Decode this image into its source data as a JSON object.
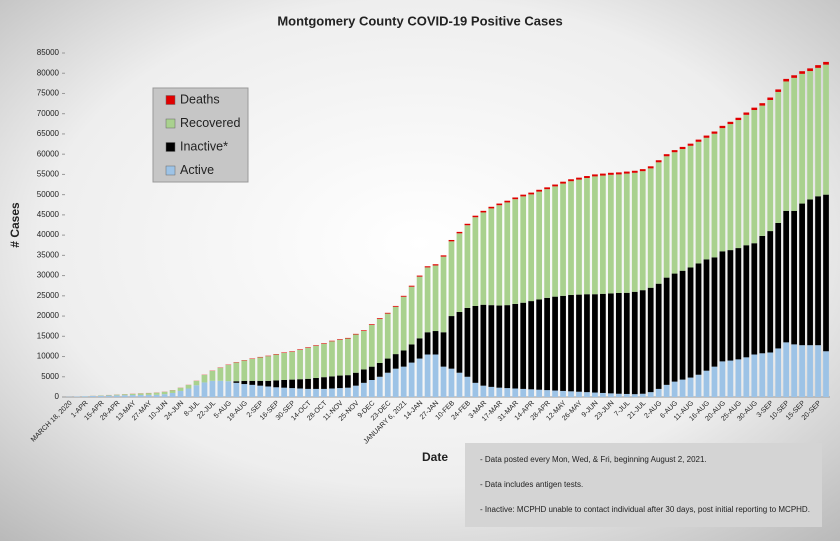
{
  "chart_data": {
    "type": "bar",
    "stacked": true,
    "title": "Montgomery County COVID-19 Positive Cases",
    "y_label": "# Cases",
    "x_label": "Date",
    "legend": "upper left",
    "categories": [
      "MARCH 18, 2020",
      null,
      "1-APR",
      null,
      "15-APR",
      null,
      "29-APR",
      null,
      "13-MAY",
      null,
      "27-MAY",
      null,
      "10-JUN",
      null,
      "24-JUN",
      null,
      "8-JUL",
      null,
      "22-JUL",
      null,
      "5-AUG",
      null,
      "19-AUG",
      null,
      "2-SEP",
      null,
      "16-SEP",
      null,
      "30-SEP",
      null,
      "14-OCT",
      null,
      "28-OCT",
      null,
      "11-NOV",
      null,
      "25-NOV",
      null,
      "9-DEC",
      null,
      "23-DEC",
      null,
      "JANUARY 6, 2021",
      null,
      "14-JAN",
      null,
      "27-JAN",
      null,
      "10-FEB",
      null,
      "24-FEB",
      null,
      "3-MAR",
      null,
      "17-MAR",
      null,
      "31-MAR",
      null,
      "14-APR",
      null,
      "28-APR",
      null,
      "12-MAY",
      null,
      "26-MAY",
      null,
      "9-JUN",
      null,
      "23-JUN",
      null,
      "7-JUL",
      null,
      "21-JUL",
      null,
      "2-AUG",
      null,
      "6-AUG",
      null,
      "11-AUG",
      null,
      "16-AUG",
      null,
      "20-AUG",
      null,
      "25-AUG",
      null,
      "30-AUG",
      null,
      "3-SEP",
      null,
      "10-SEP",
      null,
      "15-SEP",
      null,
      "20-SEP",
      null
    ],
    "series": [
      {
        "name": "Active",
        "color": "#9dc3e6",
        "values": [
          50,
          100,
          180,
          250,
          300,
          350,
          400,
          450,
          480,
          500,
          520,
          550,
          700,
          1000,
          1500,
          2100,
          2900,
          3600,
          4000,
          4000,
          3900,
          3500,
          3200,
          3000,
          2800,
          2600,
          2400,
          2300,
          2200,
          2100,
          2000,
          2000,
          2000,
          2100,
          2200,
          2300,
          2800,
          3500,
          4200,
          5000,
          6000,
          7000,
          7500,
          8500,
          9500,
          10500,
          10500,
          7500,
          7000,
          6000,
          5000,
          3500,
          2800,
          2500,
          2300,
          2200,
          2100,
          2000,
          1900,
          1800,
          1700,
          1600,
          1500,
          1400,
          1300,
          1200,
          1100,
          1000,
          900,
          800,
          750,
          700,
          800,
          1200,
          2000,
          3000,
          3800,
          4300,
          4800,
          5500,
          6500,
          7500,
          8800,
          9000,
          9300,
          9800,
          10500,
          10800,
          11000,
          12000,
          13500,
          13000,
          12800,
          12800,
          12800,
          11300
        ]
      },
      {
        "name": "Inactive*",
        "color": "#000000",
        "values": [
          0,
          0,
          0,
          0,
          0,
          0,
          0,
          0,
          0,
          0,
          0,
          0,
          0,
          0,
          0,
          0,
          0,
          0,
          0,
          0,
          0,
          400,
          800,
          1000,
          1200,
          1400,
          1700,
          1900,
          2100,
          2300,
          2500,
          2700,
          2900,
          3000,
          3100,
          3100,
          3200,
          3300,
          3300,
          3400,
          3500,
          3600,
          4000,
          4500,
          5000,
          5500,
          5800,
          8500,
          13000,
          15000,
          17000,
          19000,
          20000,
          20200,
          20300,
          20500,
          20900,
          21300,
          21800,
          22300,
          22800,
          23200,
          23500,
          23800,
          24000,
          24200,
          24300,
          24500,
          24700,
          24900,
          25000,
          25300,
          25600,
          25800,
          26000,
          26500,
          26700,
          26900,
          27200,
          27500,
          27500,
          27000,
          27200,
          27300,
          27500,
          27700,
          27500,
          29000,
          30000,
          31000,
          32500,
          33000,
          35000,
          36000,
          36800,
          38700
        ]
      },
      {
        "name": "Recovered",
        "color": "#a9d18e",
        "values": [
          0,
          0,
          20,
          40,
          90,
          130,
          180,
          230,
          290,
          370,
          450,
          520,
          570,
          670,
          770,
          870,
          1060,
          1850,
          2440,
          3230,
          4020,
          4610,
          5000,
          5400,
          5790,
          6090,
          6380,
          6680,
          6880,
          7270,
          7670,
          7970,
          8260,
          8660,
          8860,
          9050,
          9450,
          9540,
          10330,
          10920,
          11110,
          11700,
          13280,
          14260,
          15240,
          16020,
          16200,
          18680,
          18460,
          19440,
          20440,
          21920,
          22800,
          23900,
          24790,
          25380,
          25880,
          26270,
          26360,
          26650,
          26850,
          27240,
          27730,
          28120,
          28420,
          28710,
          29110,
          29210,
          29300,
          29300,
          29450,
          29400,
          29400,
          29490,
          29990,
          29980,
          29980,
          30070,
          30070,
          30060,
          30050,
          30550,
          30440,
          31140,
          31630,
          32220,
          32910,
          32200,
          32390,
          32380,
          31970,
          32860,
          32050,
          31740,
          31730,
          32120
        ]
      },
      {
        "name": "Deaths",
        "color": "#e00000",
        "values": [
          0,
          0,
          0,
          10,
          10,
          20,
          20,
          20,
          30,
          30,
          30,
          30,
          30,
          30,
          30,
          30,
          40,
          50,
          60,
          70,
          80,
          90,
          100,
          100,
          110,
          110,
          120,
          120,
          120,
          130,
          130,
          130,
          140,
          140,
          140,
          150,
          150,
          160,
          170,
          180,
          190,
          200,
          220,
          240,
          260,
          280,
          300,
          320,
          340,
          360,
          360,
          380,
          400,
          400,
          410,
          420,
          420,
          430,
          440,
          450,
          450,
          460,
          470,
          480,
          480,
          490,
          490,
          490,
          500,
          500,
          500,
          500,
          500,
          510,
          510,
          520,
          520,
          530,
          530,
          540,
          550,
          550,
          560,
          560,
          570,
          580,
          590,
          600,
          610,
          620,
          630,
          640,
          650,
          660,
          670,
          680
        ]
      }
    ],
    "ylim": [
      0,
      85000
    ],
    "yticks": [
      0,
      5000,
      10000,
      15000,
      20000,
      25000,
      30000,
      35000,
      40000,
      45000,
      50000,
      55000,
      60000,
      65000,
      70000,
      75000,
      80000,
      85000
    ],
    "notes": [
      "- Data posted every Mon, Wed, & Fri, beginning August 2, 2021.",
      "- Data includes antigen tests.",
      "- Inactive: MCPHD unable to contact individual after 30 days, post initial reporting to MCPHD."
    ]
  }
}
